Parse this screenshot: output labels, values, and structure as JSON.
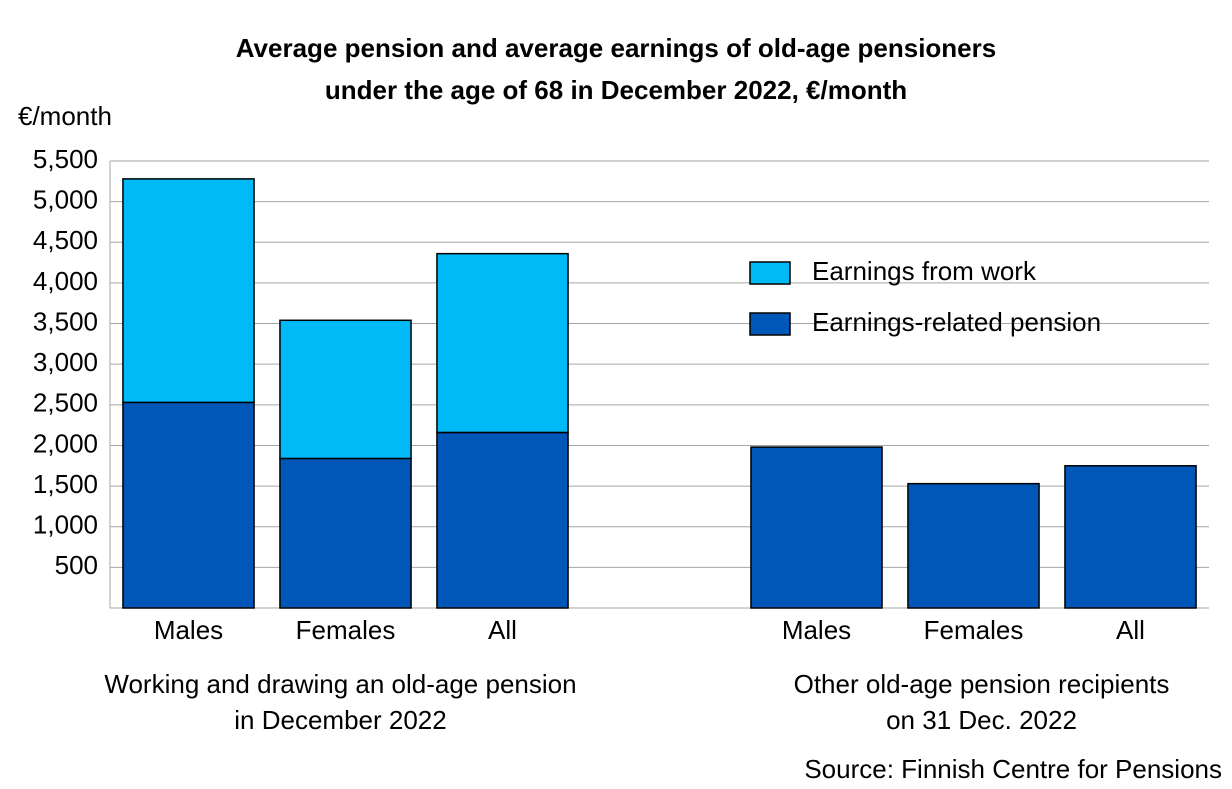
{
  "chart_data": {
    "type": "stacked_bar",
    "title": [
      "Average pension and average earnings of old-age pensioners",
      "under the age of 68 in December 2022, €/month"
    ],
    "y_label": "€/month",
    "categories": [
      "Males",
      "Females",
      "All",
      null,
      "Males",
      "Females",
      "All"
    ],
    "group_labels": [
      [
        "Working and drawing an old-age pension",
        "in December 2022"
      ],
      [
        "Other old-age pension recipients",
        "on 31 Dec. 2022"
      ]
    ],
    "series": [
      {
        "name": "Earnings-related pension",
        "color": "#0057b8",
        "values": [
          2530,
          1840,
          2160,
          null,
          1980,
          1530,
          1750
        ]
      },
      {
        "name": "Earnings from work",
        "color": "#00b9f7",
        "values": [
          2750,
          1700,
          2200,
          null,
          null,
          null,
          null
        ]
      }
    ],
    "ylim": [
      0,
      5500
    ],
    "yticks": [
      {
        "value": 500,
        "label": "500"
      },
      {
        "value": 1000,
        "label": "1,000"
      },
      {
        "value": 1500,
        "label": "1,500"
      },
      {
        "value": 2000,
        "label": "2,000"
      },
      {
        "value": 2500,
        "label": "2,500"
      },
      {
        "value": 3000,
        "label": "3,000"
      },
      {
        "value": 3500,
        "label": "3,500"
      },
      {
        "value": 4000,
        "label": "4,000"
      },
      {
        "value": 4500,
        "label": "4,500"
      },
      {
        "value": 5000,
        "label": "5,000"
      },
      {
        "value": 5500,
        "label": "5,500"
      }
    ],
    "grid": true,
    "legend": "upper right",
    "source": "Source: Finnish Centre for Pensions"
  }
}
